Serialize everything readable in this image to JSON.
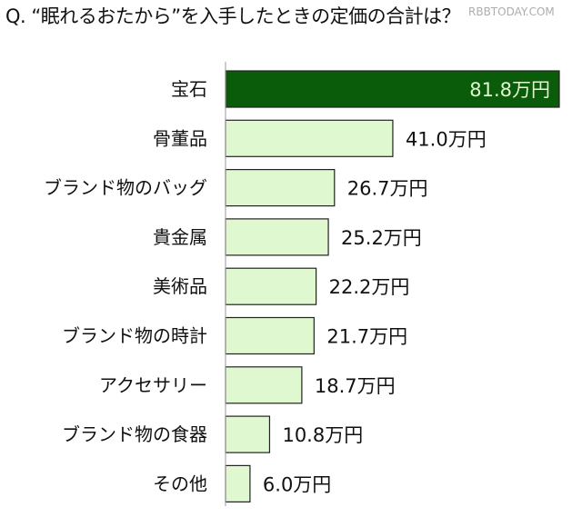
{
  "title": "Q. “眠れるおたから”を入手したときの定価の合計は？",
  "watermark": "RBBTODAY.COM",
  "chart_data": {
    "type": "bar",
    "orientation": "horizontal",
    "categories": [
      "宝石",
      "骨董品",
      "ブランド物のバッグ",
      "貴金属",
      "美術品",
      "ブランド物の時計",
      "アクセサリー",
      "ブランド物の食器",
      "その他"
    ],
    "values": [
      81.8,
      41.0,
      26.7,
      25.2,
      22.2,
      21.7,
      18.7,
      10.8,
      6.0
    ],
    "labels": [
      "81.8万円",
      "41.0万円",
      "26.7万円",
      "25.2万円",
      "22.2万円",
      "21.7万円",
      "18.7万円",
      "10.8万円",
      "6.0万円"
    ],
    "unit": "万円",
    "highlight_color": "#0a5c0a",
    "bar_color": "#e0f8d0",
    "grid": false,
    "legend": "none"
  }
}
